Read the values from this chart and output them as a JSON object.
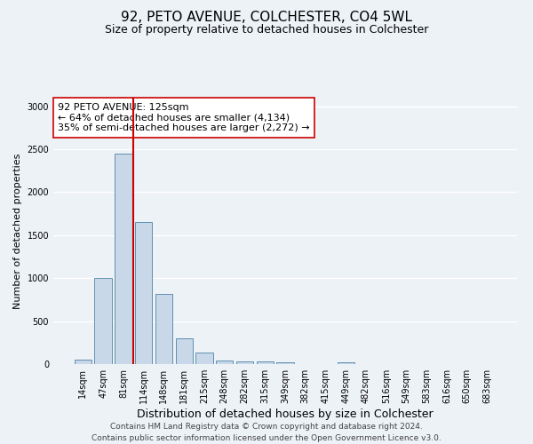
{
  "title": "92, PETO AVENUE, COLCHESTER, CO4 5WL",
  "subtitle": "Size of property relative to detached houses in Colchester",
  "xlabel": "Distribution of detached houses by size in Colchester",
  "ylabel": "Number of detached properties",
  "bar_labels": [
    "14sqm",
    "47sqm",
    "81sqm",
    "114sqm",
    "148sqm",
    "181sqm",
    "215sqm",
    "248sqm",
    "282sqm",
    "315sqm",
    "349sqm",
    "382sqm",
    "415sqm",
    "449sqm",
    "482sqm",
    "516sqm",
    "549sqm",
    "583sqm",
    "616sqm",
    "650sqm",
    "683sqm"
  ],
  "bar_values": [
    50,
    1000,
    2450,
    1650,
    820,
    300,
    130,
    45,
    35,
    30,
    20,
    0,
    0,
    25,
    0,
    0,
    0,
    0,
    0,
    0,
    0
  ],
  "bar_color": "#c8d8e8",
  "bar_edge_color": "#6090b0",
  "annotation_line1": "92 PETO AVENUE: 125sqm",
  "annotation_line2": "← 64% of detached houses are smaller (4,134)",
  "annotation_line3": "35% of semi-detached houses are larger (2,272) →",
  "vline_color": "#cc0000",
  "annotation_box_facecolor": "#ffffff",
  "annotation_box_edgecolor": "#cc0000",
  "ylim": [
    0,
    3100
  ],
  "yticks": [
    0,
    500,
    1000,
    1500,
    2000,
    2500,
    3000
  ],
  "footer_line1": "Contains HM Land Registry data © Crown copyright and database right 2024.",
  "footer_line2": "Contains public sector information licensed under the Open Government Licence v3.0.",
  "background_color": "#edf2f7",
  "grid_color": "#ffffff",
  "title_fontsize": 11,
  "subtitle_fontsize": 9,
  "ylabel_fontsize": 8,
  "xlabel_fontsize": 9,
  "tick_fontsize": 7,
  "annotation_fontsize": 8,
  "footer_fontsize": 6.5,
  "vline_x": 2.5
}
